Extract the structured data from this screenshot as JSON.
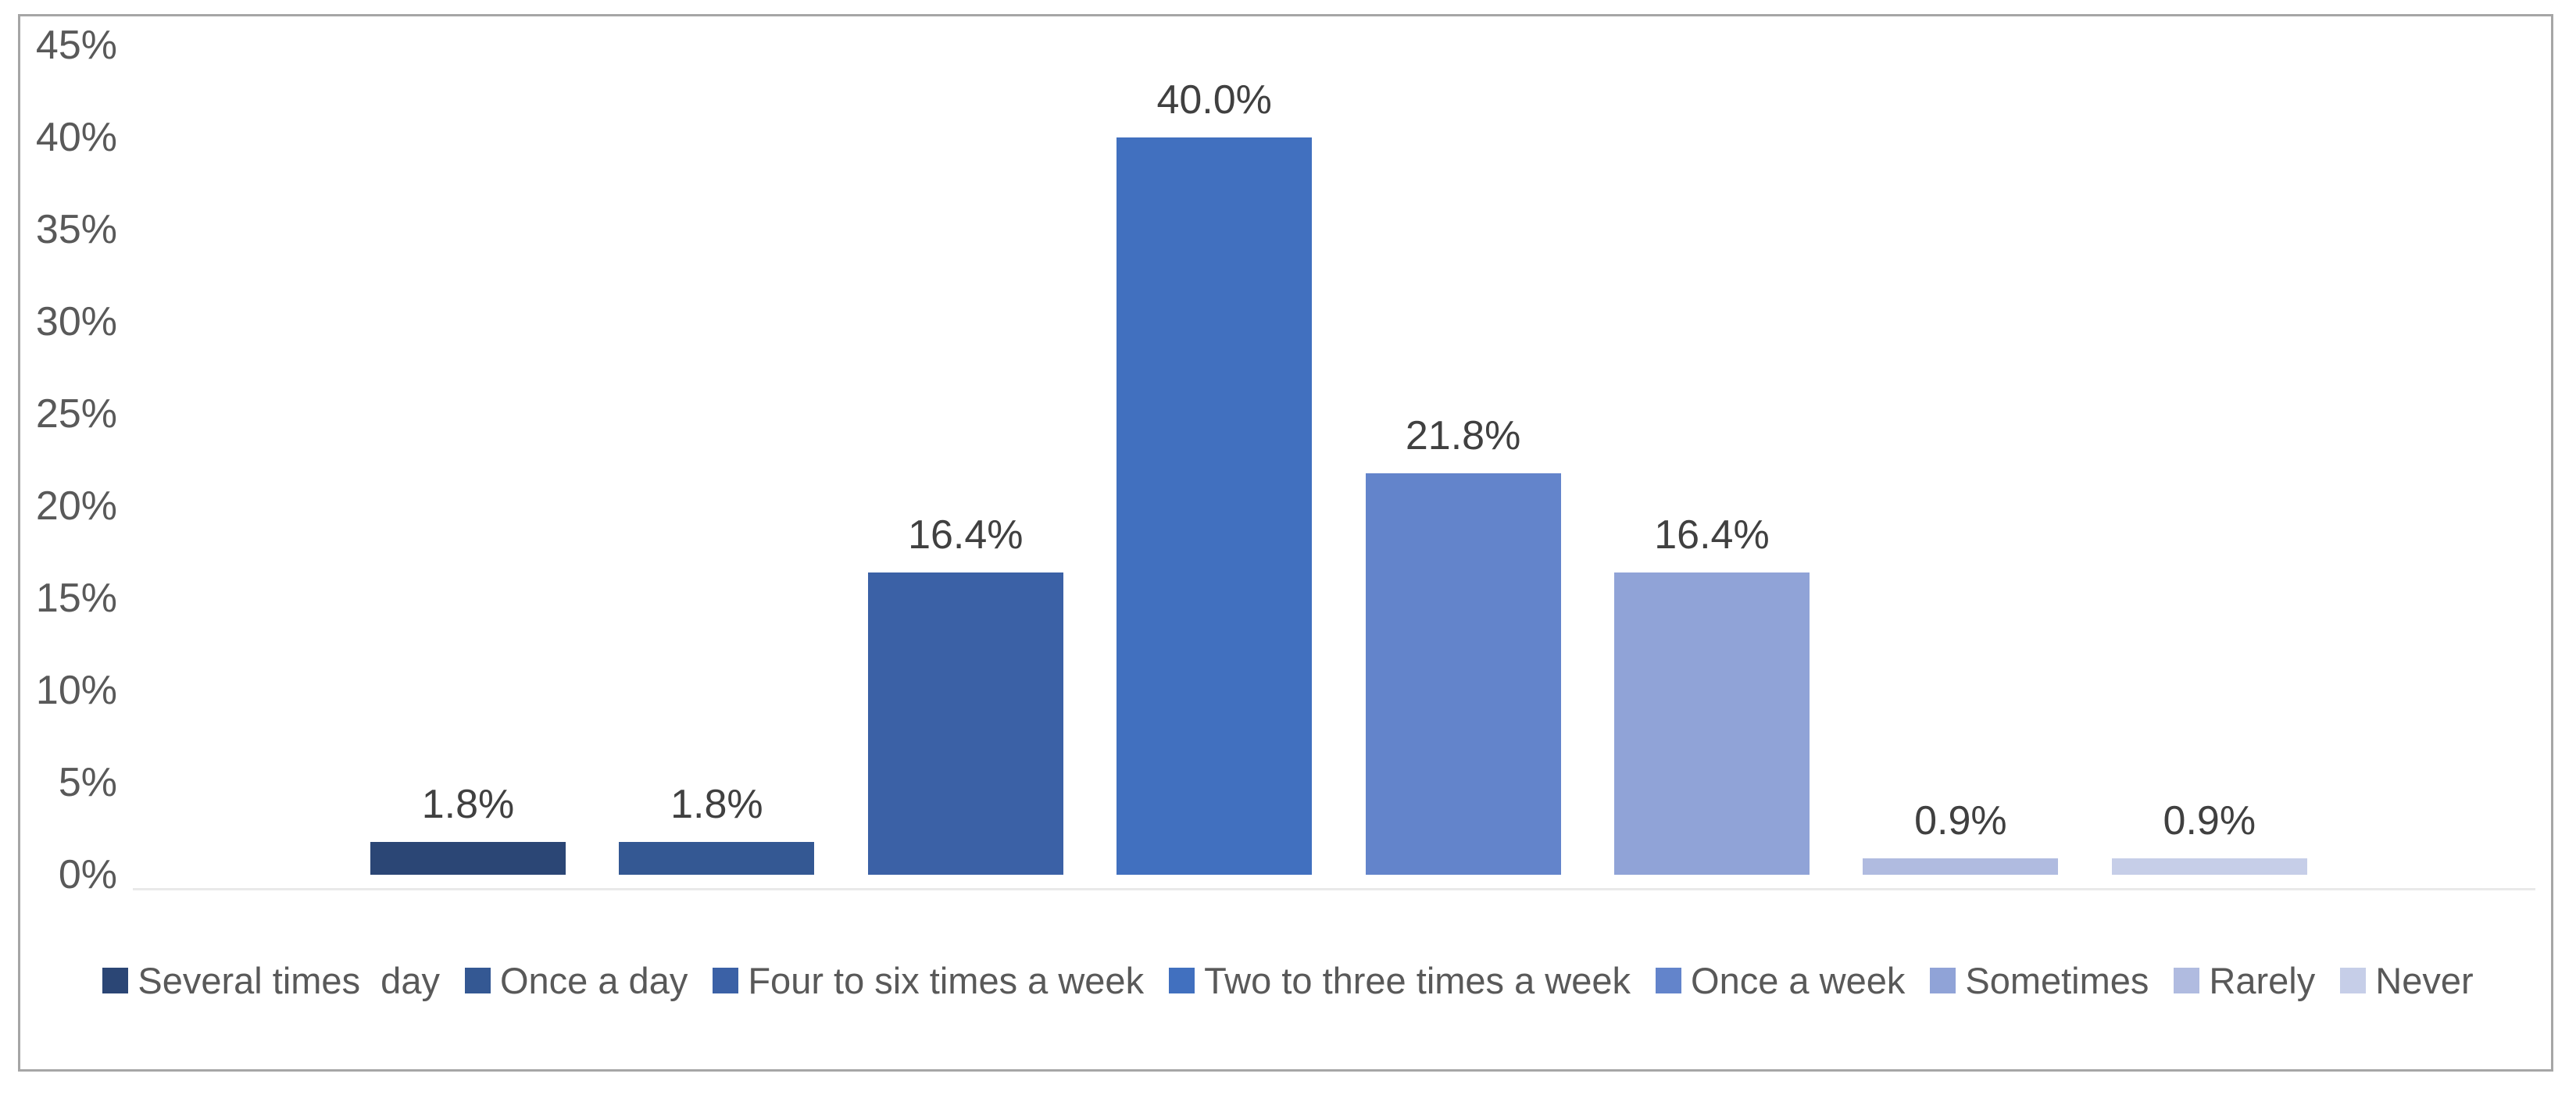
{
  "chart_data": {
    "type": "bar",
    "title": "",
    "xlabel": "",
    "ylabel": "",
    "categories": [
      "Several times  day",
      "Once a day",
      "Four to six times a week",
      "Two to three times a week",
      "Once a week",
      "Sometimes",
      "Rarely",
      "Never"
    ],
    "values": [
      1.8,
      1.8,
      16.4,
      40.0,
      21.8,
      16.4,
      0.9,
      0.9
    ],
    "data_labels": [
      "1.8%",
      "1.8%",
      "16.4%",
      "40.0%",
      "21.8%",
      "16.4%",
      "0.9%",
      "0.9%"
    ],
    "bar_colors": [
      "#2B4675",
      "#345893",
      "#3B61A6",
      "#4170BF",
      "#6384CB",
      "#90A3D7",
      "#B0BBE0",
      "#C6CEE8"
    ],
    "ylim": [
      0,
      45
    ],
    "ytick_step": 5,
    "ytick_labels": [
      "45%",
      "40%",
      "35%",
      "30%",
      "25%",
      "20%",
      "15%",
      "10%",
      "5%",
      "0%"
    ],
    "gridlines": false,
    "legend_position": "bottom"
  },
  "colors": {
    "background": "#FFFFFF",
    "frame_border": "#A6A6A6",
    "axis_text": "#595959",
    "data_label_text": "#404040",
    "legend_text": "#595959",
    "axis_line": "#E9E9E9"
  }
}
